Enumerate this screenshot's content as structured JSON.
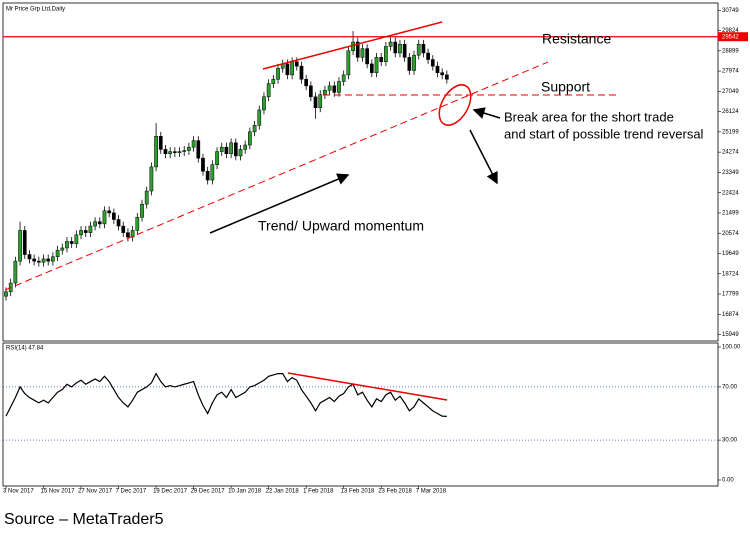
{
  "chart_data": [
    {
      "type": "candlestick",
      "title": "Mr Price Grp Ltd,Daily",
      "categories": [
        "3 Nov 2017",
        null,
        null,
        null,
        null,
        null,
        null,
        null,
        "15 Nov 2017",
        null,
        null,
        null,
        null,
        null,
        null,
        null,
        "27 Nov 2017",
        null,
        null,
        null,
        null,
        null,
        null,
        null,
        "7 Dec 2017",
        null,
        null,
        null,
        null,
        null,
        null,
        null,
        "19 Dec 2017",
        null,
        null,
        null,
        null,
        null,
        null,
        null,
        "29 Dec 2017",
        null,
        null,
        null,
        null,
        null,
        null,
        null,
        "10 Jan 2018",
        null,
        null,
        null,
        null,
        null,
        null,
        null,
        "22 Jan 2018",
        null,
        null,
        null,
        null,
        null,
        null,
        null,
        "1 Feb 2018",
        null,
        null,
        null,
        null,
        null,
        null,
        null,
        "13 Feb 2018",
        null,
        null,
        null,
        null,
        null,
        null,
        null,
        "23 Feb 2018",
        null,
        null,
        null,
        null,
        null,
        null,
        null,
        "7 Mar 2018",
        null,
        null,
        null,
        null,
        null,
        null
      ],
      "open": [
        17700,
        17900,
        18300,
        19300,
        20700,
        19600,
        19400,
        19300,
        19250,
        19400,
        19300,
        19500,
        19800,
        19900,
        20200,
        20100,
        20500,
        20700,
        20600,
        20900,
        21100,
        21000,
        21600,
        21500,
        21200,
        20900,
        20600,
        20400,
        20700,
        21300,
        21900,
        22500,
        23600,
        25000,
        24400,
        24200,
        24300,
        24250,
        24300,
        24350,
        24500,
        24800,
        24000,
        23400,
        23000,
        23700,
        24300,
        24500,
        24200,
        24700,
        24100,
        24400,
        24600,
        25200,
        25500,
        26200,
        26800,
        27400,
        27600,
        28100,
        28300,
        27800,
        28400,
        28200,
        27600,
        27300,
        26800,
        26300,
        26900,
        27100,
        27300,
        27000,
        27500,
        27800,
        28900,
        29300,
        28600,
        29000,
        28300,
        27900,
        28600,
        28400,
        29100,
        29300,
        28800,
        29200,
        28600,
        28000,
        28700,
        29200,
        28800,
        28500,
        28200,
        27900,
        27800
      ],
      "high": [
        18100,
        18500,
        19500,
        21100,
        20900,
        19800,
        19600,
        19500,
        19600,
        19600,
        19700,
        20000,
        20100,
        20400,
        20400,
        20700,
        20900,
        20900,
        21100,
        21300,
        21300,
        21800,
        21800,
        21700,
        21400,
        21100,
        20800,
        20900,
        21500,
        22100,
        22700,
        23800,
        25600,
        25200,
        24600,
        24500,
        24500,
        24500,
        24550,
        24700,
        25000,
        25000,
        24200,
        23600,
        23900,
        24500,
        24700,
        24700,
        24900,
        24900,
        24600,
        24800,
        25400,
        25700,
        26400,
        27000,
        27600,
        27800,
        28300,
        28500,
        28500,
        28600,
        28600,
        28400,
        27800,
        27500,
        27000,
        27100,
        27300,
        27500,
        27500,
        27700,
        28000,
        29100,
        29800,
        29500,
        29200,
        29200,
        28500,
        28800,
        28800,
        29300,
        29500,
        29500,
        29400,
        29400,
        28800,
        28900,
        29400,
        29400,
        29000,
        28700,
        28400,
        28100,
        28000
      ],
      "low": [
        17500,
        17700,
        18100,
        19100,
        19400,
        19200,
        19100,
        19050,
        19050,
        19100,
        19100,
        19300,
        19600,
        19700,
        19900,
        19900,
        20300,
        20400,
        20400,
        20700,
        20800,
        20800,
        21300,
        21000,
        20700,
        20400,
        20200,
        20200,
        20500,
        21100,
        21700,
        22300,
        23400,
        24200,
        24000,
        24000,
        24050,
        24050,
        24100,
        24150,
        24300,
        23800,
        23200,
        22800,
        22800,
        23500,
        24100,
        24000,
        24000,
        23900,
        23900,
        24200,
        24400,
        25000,
        25300,
        26000,
        26600,
        27200,
        27400,
        27900,
        27600,
        27600,
        28000,
        27400,
        27100,
        26600,
        25800,
        26100,
        26700,
        26900,
        26800,
        26800,
        27300,
        27600,
        28700,
        28400,
        28400,
        28100,
        27700,
        27700,
        28200,
        28200,
        28900,
        28600,
        28600,
        28400,
        27800,
        27800,
        28500,
        28600,
        28300,
        28000,
        27700,
        27600,
        27400
      ],
      "close": [
        17900,
        18300,
        19300,
        20700,
        19600,
        19400,
        19300,
        19250,
        19400,
        19300,
        19500,
        19800,
        19900,
        20200,
        20100,
        20500,
        20700,
        20600,
        20900,
        21100,
        21000,
        21600,
        21500,
        21200,
        20900,
        20600,
        20400,
        20700,
        21300,
        21900,
        22500,
        23600,
        25000,
        24400,
        24200,
        24300,
        24250,
        24300,
        24350,
        24500,
        24800,
        24000,
        23400,
        23000,
        23700,
        24300,
        24500,
        24200,
        24700,
        24100,
        24400,
        24600,
        25200,
        25500,
        26200,
        26800,
        27400,
        27600,
        28100,
        28300,
        27800,
        28400,
        28200,
        27600,
        27300,
        26800,
        26300,
        26900,
        27100,
        27300,
        27000,
        27500,
        27800,
        28900,
        29300,
        28600,
        29000,
        28300,
        27900,
        28600,
        28400,
        29100,
        29300,
        28800,
        29200,
        28600,
        28000,
        28700,
        29200,
        28800,
        28500,
        28200,
        27900,
        27800,
        27600
      ],
      "up_color": "#2ca02c",
      "down_color": "#000000",
      "ylim": [
        15700,
        30990
      ],
      "yticks": [
        15949,
        16874,
        17799,
        18724,
        19649,
        20574,
        21499,
        22424,
        23349,
        24274,
        25199,
        26124,
        27049,
        27974,
        28899,
        29824,
        30749
      ],
      "resistance_level": 29542,
      "annotations": {
        "resistance": "Resistance",
        "support": "Support",
        "break_area": [
          "Break area for the short trade",
          "and start of possible trend reversal"
        ],
        "trend": "Trend/ Upward momentum"
      }
    },
    {
      "type": "line",
      "title": "RSI(14) 47.84",
      "values": [
        48,
        55,
        62,
        70,
        65,
        62,
        60,
        58,
        60,
        58,
        62,
        66,
        68,
        72,
        70,
        73,
        75,
        72,
        74,
        76,
        74,
        78,
        74,
        68,
        62,
        58,
        55,
        60,
        66,
        68,
        70,
        73,
        80,
        74,
        70,
        71,
        70,
        71,
        72,
        73,
        74,
        64,
        56,
        50,
        58,
        64,
        66,
        62,
        68,
        62,
        64,
        66,
        70,
        71,
        73,
        75,
        78,
        79,
        80,
        80,
        74,
        77,
        75,
        68,
        63,
        58,
        52,
        58,
        60,
        62,
        59,
        63,
        65,
        70,
        72,
        64,
        66,
        60,
        55,
        61,
        59,
        64,
        66,
        60,
        63,
        58,
        52,
        55,
        61,
        58,
        55,
        52,
        50,
        48,
        47.84
      ],
      "color": "#000000",
      "ylim": [
        0,
        100
      ],
      "yticks": [
        {
          "value": 0,
          "label": "0.00"
        },
        {
          "value": 30,
          "label": "30.00"
        },
        {
          "value": 70,
          "label": "70.00"
        },
        {
          "value": 100,
          "label": "100.00"
        }
      ],
      "levels": [
        70,
        30
      ]
    }
  ],
  "source": "Source – MetaTrader5"
}
